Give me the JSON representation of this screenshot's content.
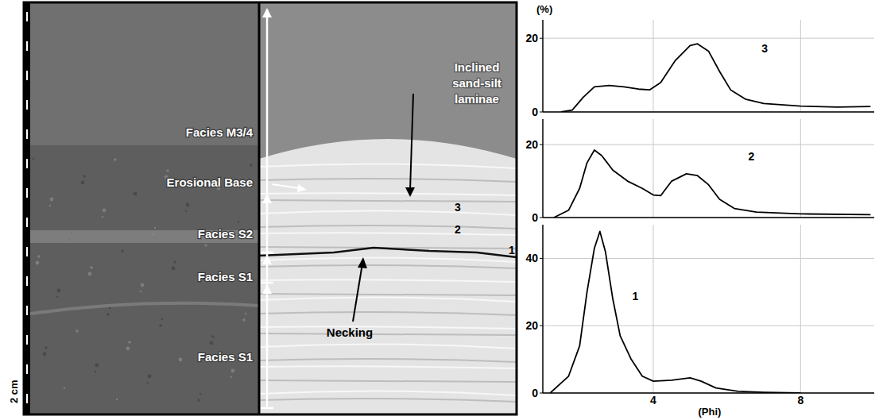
{
  "chart_data": [
    {
      "type": "line",
      "y_label": "(%)",
      "x": [
        1.5,
        1.8,
        2.1,
        2.4,
        2.8,
        3.2,
        3.6,
        3.9,
        4.2,
        4.6,
        5.0,
        5.2,
        5.5,
        5.8,
        6.1,
        6.5,
        7.0,
        8.0,
        9.0,
        9.9
      ],
      "series": [
        {
          "name": "3",
          "color": "#000000",
          "values": [
            0,
            0.5,
            4,
            6.8,
            7.2,
            6.8,
            6.2,
            6,
            8,
            14,
            18,
            18.5,
            16.5,
            11,
            6,
            3.5,
            2.3,
            1.6,
            1.3,
            1.5
          ]
        }
      ],
      "xlim": [
        1,
        10
      ],
      "ylim": [
        0,
        25
      ],
      "xticks": [
        4,
        8
      ],
      "yticks": [
        0,
        20
      ],
      "grid": true,
      "tick_labels": "y"
    },
    {
      "type": "line",
      "x": [
        1.3,
        1.7,
        2.0,
        2.2,
        2.4,
        2.6,
        2.9,
        3.3,
        3.7,
        4.0,
        4.2,
        4.5,
        4.9,
        5.2,
        5.5,
        5.8,
        6.2,
        6.8,
        8.0,
        9.9
      ],
      "series": [
        {
          "name": "2",
          "color": "#000000",
          "values": [
            0,
            2,
            8,
            15,
            18.5,
            17,
            13,
            10,
            8,
            6.2,
            6,
            10,
            12,
            11.5,
            9,
            5,
            2.5,
            1.5,
            1,
            0.8
          ]
        }
      ],
      "xlim": [
        1,
        10
      ],
      "ylim": [
        0,
        27
      ],
      "xticks": [
        4,
        8
      ],
      "yticks": [
        0,
        20
      ],
      "grid": true,
      "tick_labels": "y"
    },
    {
      "type": "line",
      "x_label": "(Phi)",
      "x": [
        1.2,
        1.7,
        2.0,
        2.2,
        2.4,
        2.55,
        2.7,
        2.9,
        3.1,
        3.4,
        3.7,
        4.0,
        4.5,
        5.0,
        5.3,
        5.7,
        6.3,
        7.0,
        8.0
      ],
      "series": [
        {
          "name": "1",
          "color": "#000000",
          "values": [
            0,
            5,
            14,
            30,
            43,
            48,
            42,
            28,
            17,
            10,
            5,
            3.5,
            3.8,
            4.5,
            3.5,
            1.5,
            0.5,
            0.2,
            0
          ]
        }
      ],
      "xlim": [
        1,
        10
      ],
      "ylim": [
        0,
        50
      ],
      "xticks": [
        4,
        8
      ],
      "yticks": [
        0,
        20,
        40
      ],
      "grid": true
    }
  ],
  "core_image": {
    "scale_label": "2 cm",
    "facies": [
      "Facies M3/4",
      "Facies S2",
      "Facies S1",
      "Facies S1"
    ],
    "erosional_base": "Erosional Base",
    "laminae": "Inclined sand-silt laminae",
    "necking": "Necking",
    "sample_numbers": [
      "3",
      "2",
      "1"
    ]
  }
}
